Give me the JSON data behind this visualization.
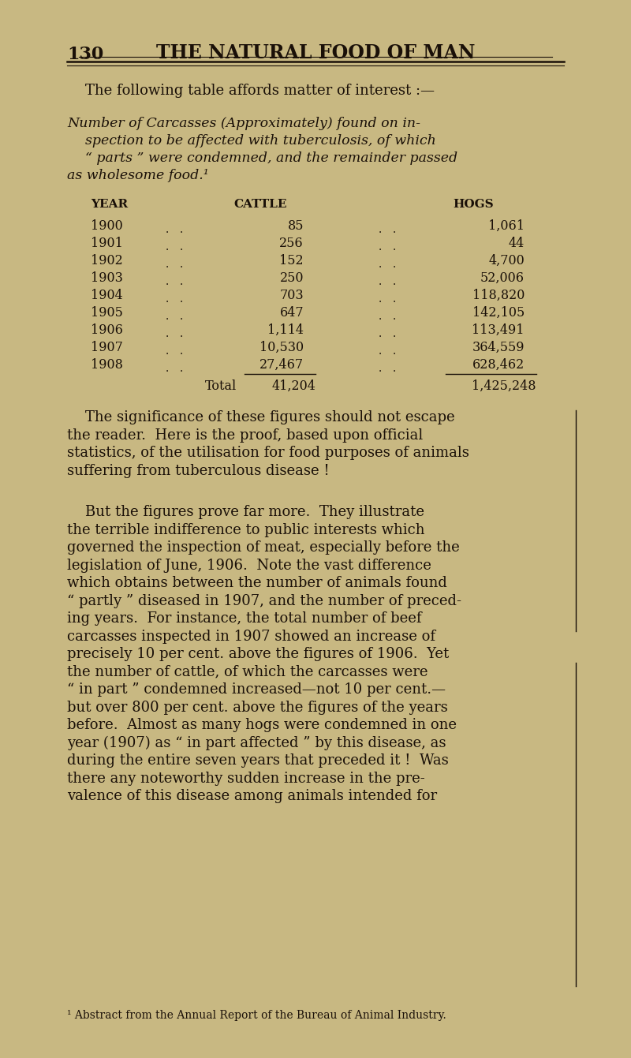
{
  "bg_color": "#c8b882",
  "text_color": "#1a1008",
  "page_number": "130",
  "chapter_title": "THE NATURAL FOOD OF MAN",
  "intro_sentence": "The following table affords matter of interest :—",
  "table_caption_italic": "Number of Carcasses (Approximately) found on in-\n    spection to be affected with tuberculosis, of which\n    “ parts ” were condemned, and the remainder passed\n    as wholesome food.¹",
  "table_headers": [
    "YEAR",
    "CATTLE",
    "HOGS"
  ],
  "table_data": [
    [
      "1900",
      "85",
      "1,061"
    ],
    [
      "1901",
      "256",
      "44"
    ],
    [
      "1902",
      "152",
      "4,700"
    ],
    [
      "1903",
      "250",
      "52,006"
    ],
    [
      "1904",
      "703",
      "118,820"
    ],
    [
      "1905",
      "647",
      "142,105"
    ],
    [
      "1906",
      "1,114",
      "113,491"
    ],
    [
      "1907",
      "10,530",
      "364,559"
    ],
    [
      "1908",
      "27,467",
      "628,462"
    ]
  ],
  "total_label": "Total",
  "total_cattle": "41,204",
  "total_hogs": "1,425,248",
  "body_paragraphs": [
    "    The significance of these figures should not escape the reader.  Here is the proof, based upon official statistics, of the utilisation for food purposes of animals suffering from tuberculous disease !",
    "    But the figures prove far more.  They illustrate the terrible indifference to public interests which governed the inspection of meat, especially before the legislation of June, 1906.  Note the vast difference which obtains between the number of animals found “ partly ” diseased in 1907, and the number of preceding years.  For instance, the total number of beef carcasses inspected in 1907 showed an increase of precisely 10 per cent. above the figures of 1906.  Yet the number of cattle, of which the carcasses were “ in part ” condemned increased—not 10 per cent.—but —over 800 per cent. above the figures of the years before.  Almost as many hogs were condemned in one year (1907) as “ in part affected ” by this disease, as during the entire seven years that preceded it !  Was there any noteworthy sudden increase in the prevalence of this disease among animals intended for"
  ],
  "footnote": "¹ Abstract from the Annual Report of the Bureau of Animal Industry."
}
